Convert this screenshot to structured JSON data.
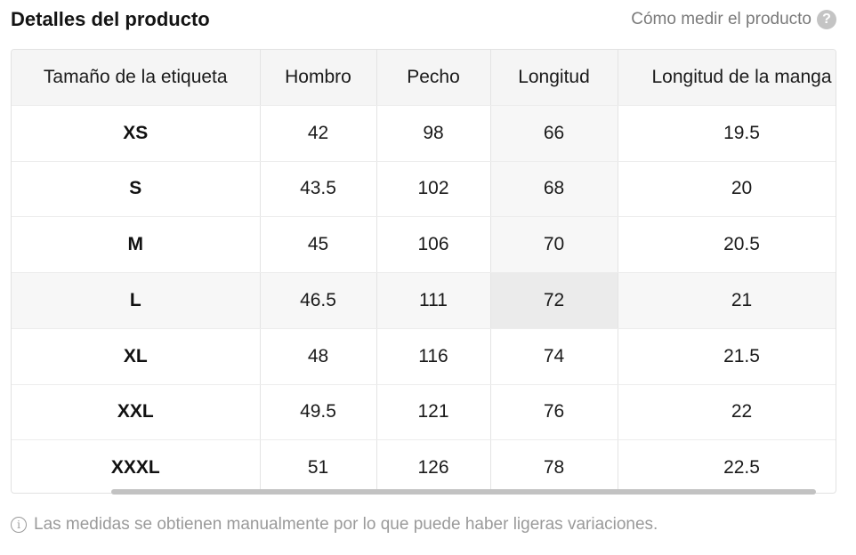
{
  "header": {
    "title": "Detalles del producto",
    "measure_link": "Cómo medir el producto",
    "help_icon": "question-circle-icon",
    "help_glyph": "?"
  },
  "table": {
    "columns": [
      "Tamaño de la etiqueta",
      "Hombro",
      "Pecho",
      "Longitud",
      "Longitud de la manga"
    ],
    "rows": [
      [
        "XS",
        "42",
        "98",
        "66",
        "19.5"
      ],
      [
        "S",
        "43.5",
        "102",
        "68",
        "20"
      ],
      [
        "M",
        "45",
        "106",
        "70",
        "20.5"
      ],
      [
        "L",
        "46.5",
        "111",
        "72",
        "21"
      ],
      [
        "XL",
        "48",
        "116",
        "74",
        "21.5"
      ],
      [
        "XXL",
        "49.5",
        "121",
        "76",
        "22"
      ],
      [
        "XXXL",
        "51",
        "126",
        "78",
        "22.5"
      ]
    ],
    "highlight": {
      "row": "L",
      "column": "Longitud",
      "shade_color": "#f7f7f7",
      "focus_color": "#ebebeb"
    }
  },
  "footnote": {
    "icon": "info-circle-icon",
    "icon_glyph": "i",
    "text": "Las medidas se obtienen manualmente por lo que puede haber ligeras variaciones."
  }
}
